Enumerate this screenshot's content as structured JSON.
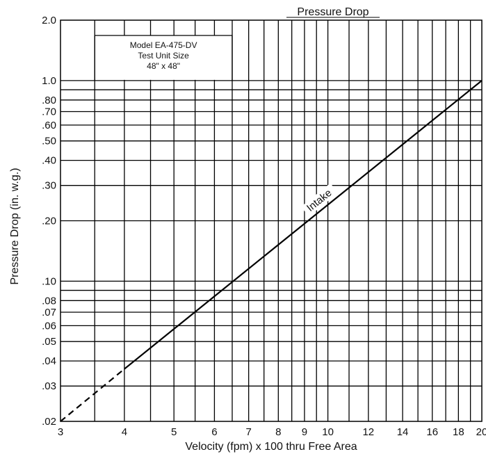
{
  "chart_data": {
    "type": "line",
    "title": "Pressure Drop",
    "xlabel": "Velocity (fpm) x 100 thru Free Area",
    "ylabel": "Pressure Drop (in. w.g.)",
    "x_scale": "log",
    "y_scale": "log",
    "xlim": [
      3,
      20
    ],
    "ylim": [
      0.02,
      2.0
    ],
    "grid": true,
    "x_ticks": [
      {
        "value": 3,
        "label": "3"
      },
      {
        "value": 4,
        "label": "4"
      },
      {
        "value": 5,
        "label": "5"
      },
      {
        "value": 6,
        "label": "6"
      },
      {
        "value": 7,
        "label": "7"
      },
      {
        "value": 8,
        "label": "8"
      },
      {
        "value": 9,
        "label": "9"
      },
      {
        "value": 10,
        "label": "10"
      },
      {
        "value": 12,
        "label": "12"
      },
      {
        "value": 14,
        "label": "14"
      },
      {
        "value": 16,
        "label": "16"
      },
      {
        "value": 18,
        "label": "18"
      },
      {
        "value": 20,
        "label": "20"
      }
    ],
    "x_gridlines": [
      3.5,
      4,
      4.5,
      5,
      5.5,
      6,
      6.5,
      7,
      7.5,
      8,
      8.5,
      9,
      9.5,
      10,
      11,
      12,
      13,
      14,
      15,
      16,
      17,
      18,
      19
    ],
    "y_ticks": [
      {
        "value": 2.0,
        "label": "2.0"
      },
      {
        "value": 1.0,
        "label": "1.0"
      },
      {
        "value": 0.8,
        "label": ".80"
      },
      {
        "value": 0.7,
        "label": ".70"
      },
      {
        "value": 0.6,
        "label": ".60"
      },
      {
        "value": 0.5,
        "label": ".50"
      },
      {
        "value": 0.4,
        "label": ".40"
      },
      {
        "value": 0.3,
        "label": ".30"
      },
      {
        "value": 0.2,
        "label": ".20"
      },
      {
        "value": 0.1,
        "label": ".10"
      },
      {
        "value": 0.08,
        "label": ".08"
      },
      {
        "value": 0.07,
        "label": ".07"
      },
      {
        "value": 0.06,
        "label": ".06"
      },
      {
        "value": 0.05,
        "label": ".05"
      },
      {
        "value": 0.04,
        "label": ".04"
      },
      {
        "value": 0.03,
        "label": ".03"
      },
      {
        "value": 0.02,
        "label": ".02"
      }
    ],
    "y_gridlines": [
      1.0,
      0.9,
      0.8,
      0.7,
      0.6,
      0.5,
      0.4,
      0.3,
      0.2,
      0.1,
      0.09,
      0.08,
      0.07,
      0.06,
      0.05,
      0.04,
      0.03
    ],
    "series": [
      {
        "name": "Intake",
        "color": "#000000",
        "style": "solid",
        "points": [
          {
            "x": 4,
            "y": 0.0365
          },
          {
            "x": 20,
            "y": 1.0
          }
        ]
      },
      {
        "name": "",
        "color": "#000000",
        "style": "dashed",
        "points": [
          {
            "x": 3,
            "y": 0.02
          },
          {
            "x": 4,
            "y": 0.0365
          }
        ]
      }
    ],
    "annotations": [
      "Model EA-475-DV",
      "Test Unit Size",
      "48\" x 48\""
    ]
  }
}
